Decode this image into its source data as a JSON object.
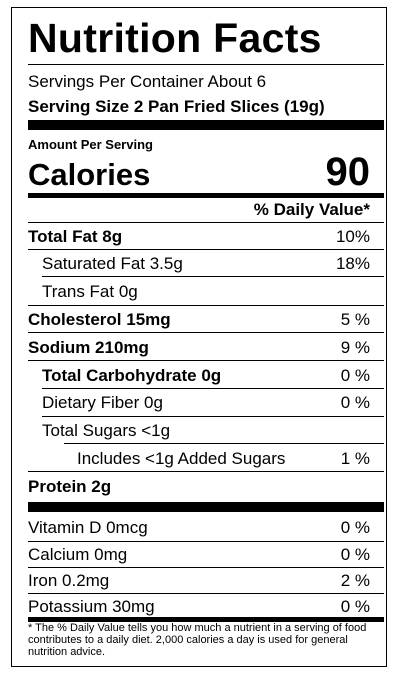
{
  "title": "Nutrition Facts",
  "servings_per_container": "Servings Per Container About 6",
  "serving_size": "Serving Size 2 Pan Fried Slices (19g)",
  "amount_per_serving": "Amount Per Serving",
  "calories_label": "Calories",
  "calories_value": "90",
  "daily_value_header": "% Daily Value*",
  "nutrients": [
    {
      "label": "Total Fat 8g",
      "dv": "10%"
    },
    {
      "label": "Saturated Fat 3.5g",
      "dv": "18%"
    },
    {
      "label": "Trans Fat 0g",
      "dv": ""
    },
    {
      "label": "Cholesterol 15mg",
      "dv": "5 %"
    },
    {
      "label": "Sodium 210mg",
      "dv": "9 %"
    },
    {
      "label": "Total Carbohydrate 0g",
      "dv": "0 %"
    },
    {
      "label": "Dietary Fiber 0g",
      "dv": "0 %"
    },
    {
      "label": "Total Sugars <1g",
      "dv": ""
    },
    {
      "label": "Includes <1g Added Sugars",
      "dv": "1 %"
    },
    {
      "label": "Protein 2g",
      "dv": ""
    }
  ],
  "vitamins": [
    {
      "label": "Vitamin D 0mcg",
      "dv": "0 %"
    },
    {
      "label": "Calcium 0mg",
      "dv": "0 %"
    },
    {
      "label": "Iron 0.2mg",
      "dv": "2 %"
    },
    {
      "label": "Potassium 30mg",
      "dv": "0 %"
    }
  ],
  "footnote": "* The % Daily Value tells you how much a nutrient in a serving of food contributes to a daily diet. 2,000 calories a day is used for general nutrition advice."
}
